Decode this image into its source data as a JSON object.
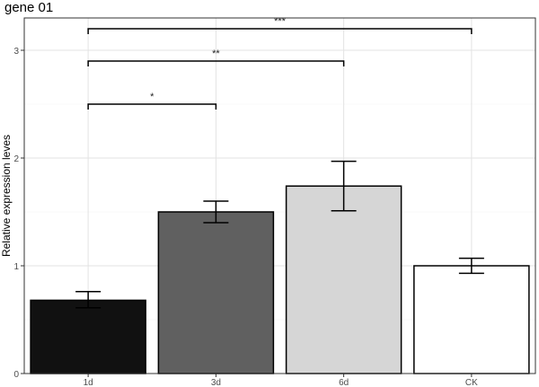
{
  "chart_data": {
    "type": "bar",
    "title": "gene 01",
    "xlabel": "",
    "ylabel": "Relative expression leves",
    "categories": [
      "1d",
      "3d",
      "6d",
      "CK"
    ],
    "values": [
      0.68,
      1.5,
      1.74,
      1.0
    ],
    "error": [
      {
        "low": 0.61,
        "high": 0.76
      },
      {
        "low": 1.4,
        "high": 1.6
      },
      {
        "low": 1.51,
        "high": 1.97
      },
      {
        "low": 0.93,
        "high": 1.07
      }
    ],
    "colors": [
      "#111111",
      "#606060",
      "#d6d6d6",
      "#ffffff"
    ],
    "ylim": [
      0,
      3.3
    ],
    "yticks": [
      0,
      1,
      2,
      3
    ],
    "grid": true,
    "significance": [
      {
        "from": "1d",
        "to": "3d",
        "y": 2.5,
        "label": "*"
      },
      {
        "from": "1d",
        "to": "6d",
        "y": 2.9,
        "label": "**"
      },
      {
        "from": "1d",
        "to": "CK",
        "y": 3.2,
        "label": "***"
      }
    ]
  }
}
